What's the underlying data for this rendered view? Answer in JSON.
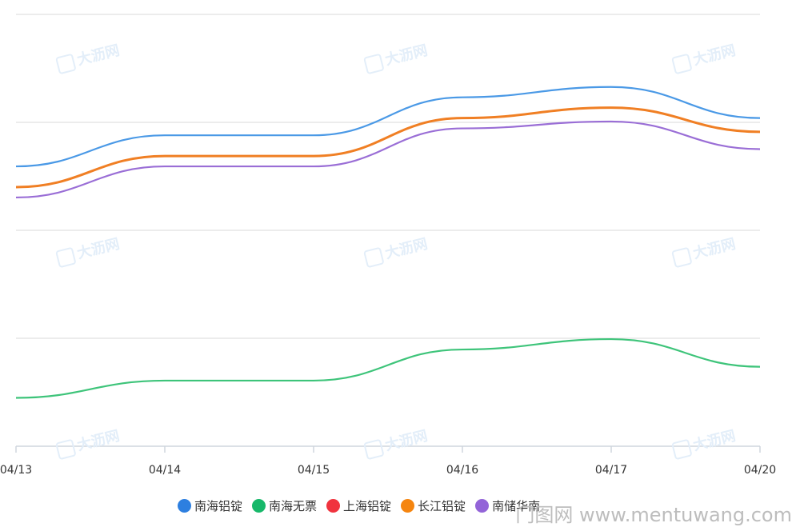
{
  "chart_data": {
    "type": "line",
    "x": [
      "04/13",
      "04/14",
      "04/15",
      "04/16",
      "04/17",
      "04/20"
    ],
    "series": [
      {
        "name": "南海铝锭",
        "color": "#4a99e6",
        "values": [
          7.6,
          8.5,
          8.5,
          9.6,
          9.9,
          9.0
        ]
      },
      {
        "name": "南海无票",
        "color": "#3ec47a",
        "values": [
          0.9,
          1.4,
          1.4,
          2.3,
          2.6,
          1.8
        ]
      },
      {
        "name": "上海铝锭",
        "color": "#f04040",
        "values": [
          7.0,
          7.9,
          7.9,
          9.0,
          9.3,
          8.6
        ]
      },
      {
        "name": "长江铝锭",
        "color": "#f07f24",
        "values": [
          7.0,
          7.9,
          7.9,
          9.0,
          9.3,
          8.6
        ]
      },
      {
        "name": "南储华南",
        "color": "#9a6ed6",
        "values": [
          6.7,
          7.6,
          7.6,
          8.7,
          8.9,
          8.1
        ]
      }
    ],
    "ylim": [
      -0.5,
      12
    ],
    "grid": true,
    "legend_position": "bottom"
  },
  "legend_dot_colors": [
    "#2d7fe0",
    "#17b86a",
    "#f0333e",
    "#f5850f",
    "#9364d8"
  ],
  "watermark_text": "大沥网",
  "footer_text": "门图网 www.mentuwang.com"
}
